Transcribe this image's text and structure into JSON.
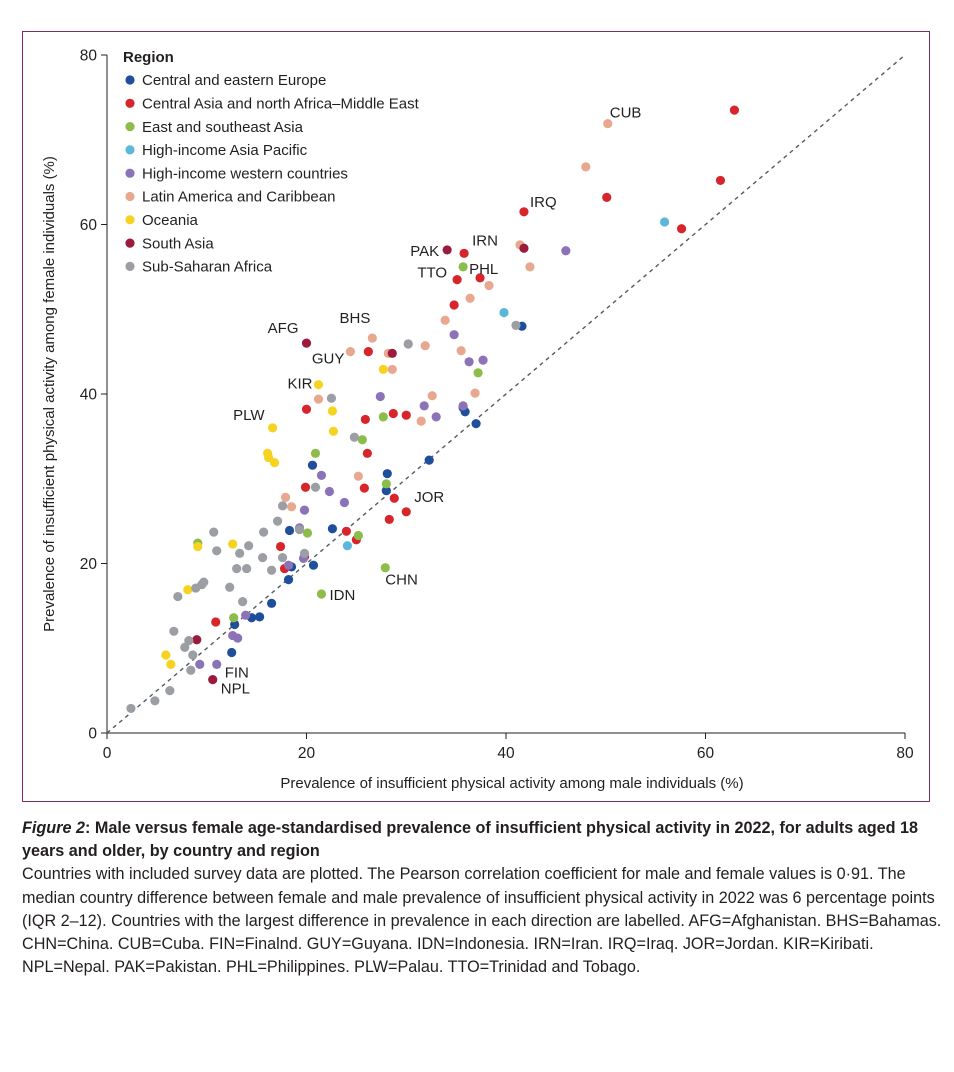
{
  "chart_data": {
    "type": "scatter",
    "xlabel": "Prevalence of insufficient physical activity among male individuals (%)",
    "ylabel": "Prevalence of insufficient physical activity among female individuals (%)",
    "xlim": [
      0,
      80
    ],
    "ylim": [
      0,
      80
    ],
    "xticks": [
      0,
      20,
      40,
      60,
      80
    ],
    "yticks": [
      0,
      20,
      40,
      60,
      80
    ],
    "reference_line": "y = x (dashed)",
    "legend_title": "Region",
    "legend_position": "top-left",
    "series": [
      {
        "name": "Central and eastern Europe",
        "color": "#1f4e9a",
        "points": [
          [
            12.5,
            9.5
          ],
          [
            12.8,
            12.8
          ],
          [
            14.5,
            13.6
          ],
          [
            15.3,
            13.7
          ],
          [
            16.5,
            15.3
          ],
          [
            18.2,
            18.1
          ],
          [
            18.5,
            19.6
          ],
          [
            18.3,
            23.9
          ],
          [
            20.7,
            19.8
          ],
          [
            20.6,
            31.6
          ],
          [
            22.6,
            24.1
          ],
          [
            28.0,
            28.6
          ],
          [
            28.1,
            30.6
          ],
          [
            32.3,
            32.2
          ],
          [
            35.9,
            37.9
          ],
          [
            35.7,
            38.4
          ],
          [
            37.0,
            36.5
          ],
          [
            41.6,
            48.0
          ]
        ]
      },
      {
        "name": "Central Asia and north Africa–Middle East",
        "color": "#d7262b",
        "points": [
          [
            10.9,
            13.1
          ],
          [
            17.4,
            22.0
          ],
          [
            17.8,
            19.4
          ],
          [
            19.8,
            20.8
          ],
          [
            19.9,
            29.0
          ],
          [
            20.0,
            38.2
          ],
          [
            24.0,
            23.8
          ],
          [
            25.0,
            22.8
          ],
          [
            25.8,
            28.9
          ],
          [
            25.9,
            37.0
          ],
          [
            26.1,
            33.0
          ],
          [
            26.2,
            45.0
          ],
          [
            28.3,
            25.2
          ],
          [
            28.7,
            37.7
          ],
          [
            28.8,
            27.7
          ],
          [
            30.0,
            37.5
          ],
          [
            30.0,
            26.1
          ],
          [
            34.8,
            50.5
          ],
          [
            35.1,
            53.5
          ],
          [
            35.8,
            56.6
          ],
          [
            37.4,
            53.7
          ],
          [
            41.8,
            61.5
          ],
          [
            50.1,
            63.2
          ],
          [
            57.6,
            59.5
          ],
          [
            61.5,
            65.2
          ],
          [
            62.9,
            73.5
          ]
        ]
      },
      {
        "name": "East and southeast Asia",
        "color": "#8cbc4a",
        "points": [
          [
            9.1,
            22.4
          ],
          [
            12.7,
            13.6
          ],
          [
            20.1,
            23.6
          ],
          [
            20.9,
            33.0
          ],
          [
            21.5,
            16.4
          ],
          [
            25.2,
            23.3
          ],
          [
            25.6,
            34.6
          ],
          [
            27.7,
            37.3
          ],
          [
            27.9,
            19.5
          ],
          [
            28.0,
            29.4
          ],
          [
            35.7,
            55.0
          ],
          [
            37.2,
            42.5
          ]
        ]
      },
      {
        "name": "High-income Asia Pacific",
        "color": "#5cb8d9",
        "points": [
          [
            24.1,
            22.1
          ],
          [
            39.8,
            49.6
          ],
          [
            55.9,
            60.3
          ]
        ]
      },
      {
        "name": "High-income western countries",
        "color": "#8c72b6",
        "points": [
          [
            9.3,
            8.1
          ],
          [
            11.0,
            8.1
          ],
          [
            12.6,
            11.5
          ],
          [
            13.1,
            11.2
          ],
          [
            13.9,
            13.9
          ],
          [
            18.2,
            19.8
          ],
          [
            19.3,
            24.2
          ],
          [
            19.7,
            20.6
          ],
          [
            19.8,
            26.3
          ],
          [
            21.5,
            30.4
          ],
          [
            22.3,
            28.5
          ],
          [
            23.8,
            27.2
          ],
          [
            27.4,
            39.7
          ],
          [
            31.8,
            38.6
          ],
          [
            33.0,
            37.3
          ],
          [
            34.8,
            47.0
          ],
          [
            35.7,
            38.6
          ],
          [
            36.3,
            43.8
          ],
          [
            37.7,
            44.0
          ],
          [
            46.0,
            56.9
          ]
        ]
      },
      {
        "name": "Latin America and Caribbean",
        "color": "#e8a88f",
        "points": [
          [
            17.9,
            27.8
          ],
          [
            18.5,
            26.7
          ],
          [
            21.2,
            39.4
          ],
          [
            24.4,
            45.0
          ],
          [
            25.2,
            30.3
          ],
          [
            26.6,
            46.6
          ],
          [
            28.2,
            44.8
          ],
          [
            28.6,
            42.9
          ],
          [
            30.2,
            45.9
          ],
          [
            31.5,
            36.8
          ],
          [
            31.9,
            45.7
          ],
          [
            32.6,
            39.8
          ],
          [
            33.9,
            48.7
          ],
          [
            35.5,
            45.1
          ],
          [
            36.4,
            51.3
          ],
          [
            36.9,
            40.1
          ],
          [
            38.3,
            52.8
          ],
          [
            41.4,
            57.6
          ],
          [
            42.4,
            55.0
          ],
          [
            48.0,
            66.8
          ],
          [
            50.2,
            71.9
          ]
        ]
      },
      {
        "name": "Oceania",
        "color": "#f5d320",
        "points": [
          [
            5.9,
            9.2
          ],
          [
            6.4,
            8.1
          ],
          [
            8.1,
            16.9
          ],
          [
            9.1,
            22.0
          ],
          [
            12.6,
            22.3
          ],
          [
            16.1,
            33.0
          ],
          [
            16.2,
            32.5
          ],
          [
            16.6,
            36.0
          ],
          [
            16.8,
            31.9
          ],
          [
            21.2,
            41.1
          ],
          [
            22.6,
            38.0
          ],
          [
            22.7,
            35.6
          ],
          [
            27.7,
            42.9
          ]
        ]
      },
      {
        "name": "South Asia",
        "color": "#9b1b3c",
        "points": [
          [
            9.0,
            11.0
          ],
          [
            10.6,
            6.3
          ],
          [
            20.0,
            46.0
          ],
          [
            28.6,
            44.8
          ],
          [
            34.1,
            57.0
          ],
          [
            41.8,
            57.2
          ]
        ]
      },
      {
        "name": "Sub-Saharan Africa",
        "color": "#9b9ea3",
        "points": [
          [
            2.4,
            2.9
          ],
          [
            4.8,
            3.8
          ],
          [
            6.3,
            5.0
          ],
          [
            6.7,
            12.0
          ],
          [
            7.1,
            16.1
          ],
          [
            7.8,
            10.1
          ],
          [
            8.2,
            10.9
          ],
          [
            8.4,
            7.4
          ],
          [
            8.6,
            9.2
          ],
          [
            8.9,
            17.1
          ],
          [
            9.5,
            17.5
          ],
          [
            9.7,
            17.8
          ],
          [
            10.7,
            23.7
          ],
          [
            11.0,
            21.5
          ],
          [
            12.3,
            17.2
          ],
          [
            13.0,
            19.4
          ],
          [
            13.3,
            21.2
          ],
          [
            13.6,
            15.5
          ],
          [
            14.0,
            19.4
          ],
          [
            14.2,
            22.1
          ],
          [
            15.6,
            20.7
          ],
          [
            15.7,
            23.7
          ],
          [
            16.5,
            19.2
          ],
          [
            17.1,
            25.0
          ],
          [
            17.6,
            20.7
          ],
          [
            17.6,
            26.8
          ],
          [
            19.3,
            24.0
          ],
          [
            19.8,
            21.2
          ],
          [
            20.9,
            29.0
          ],
          [
            22.5,
            39.5
          ],
          [
            24.8,
            34.9
          ],
          [
            30.2,
            45.9
          ],
          [
            41.0,
            48.1
          ]
        ]
      }
    ],
    "annotations": [
      {
        "label": "CUB",
        "x": 50.2,
        "y": 71.9
      },
      {
        "label": "IRQ",
        "x": 41.8,
        "y": 61.5
      },
      {
        "label": "PAK",
        "x": 34.1,
        "y": 57.0
      },
      {
        "label": "IRN",
        "x": 35.8,
        "y": 56.6
      },
      {
        "label": "TTO",
        "x": 35.1,
        "y": 53.5
      },
      {
        "label": "PHL",
        "x": 35.7,
        "y": 55.0
      },
      {
        "label": "AFG",
        "x": 20.0,
        "y": 46.0
      },
      {
        "label": "BHS",
        "x": 26.6,
        "y": 46.6
      },
      {
        "label": "GUY",
        "x": 24.4,
        "y": 45.0
      },
      {
        "label": "KIR",
        "x": 21.2,
        "y": 41.1
      },
      {
        "label": "PLW",
        "x": 16.6,
        "y": 36.0
      },
      {
        "label": "JOR",
        "x": 30.0,
        "y": 26.1
      },
      {
        "label": "CHN",
        "x": 27.9,
        "y": 19.5
      },
      {
        "label": "IDN",
        "x": 21.5,
        "y": 16.4
      },
      {
        "label": "FIN",
        "x": 11.0,
        "y": 8.1
      },
      {
        "label": "NPL",
        "x": 10.6,
        "y": 6.3
      }
    ]
  },
  "caption": {
    "figure_label": "Figure 2",
    "title": ": Male versus female age-standardised prevalence of insufficient physical activity in 2022, for adults aged 18 years and older, by country and region",
    "body": "Countries with included survey data are plotted. The Pearson correlation coefficient for male and female values is 0·91. The median country difference between female and male prevalence of insufficient physical activity in 2022 was 6 percentage points (IQR 2–12). Countries with the largest difference in prevalence in each direction are labelled. AFG=Afghanistan. BHS=Bahamas. CHN=China. CUB=Cuba. FIN=Finalnd. GUY=Guyana. IDN=Indonesia. IRN=Iran. IRQ=Iraq. JOR=Jordan. KIR=Kiribati. NPL=Nepal. PAK=Pakistan. PHL=Philippines. PLW=Palau. TTO=Trinidad and Tobago."
  }
}
